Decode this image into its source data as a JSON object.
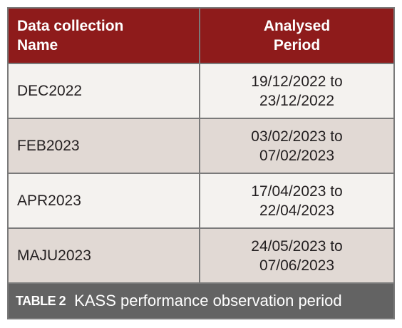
{
  "table": {
    "header": [
      [
        "Data collection",
        "Name"
      ],
      [
        "Analysed",
        "Period"
      ]
    ],
    "rows": [
      [
        [
          "DEC2022"
        ],
        [
          "19/12/2022 to",
          "23/12/2022"
        ]
      ],
      [
        [
          "FEB2023"
        ],
        [
          "03/02/2023 to",
          "07/02/2023"
        ]
      ],
      [
        [
          "APR2023"
        ],
        [
          "17/04/2023 to",
          "22/04/2023"
        ]
      ],
      [
        [
          "MAJU2023"
        ],
        [
          "24/05/2023 to",
          "07/06/2023"
        ]
      ]
    ]
  },
  "caption": {
    "label": "TABLE 2",
    "text": "KASS performance observation period"
  }
}
